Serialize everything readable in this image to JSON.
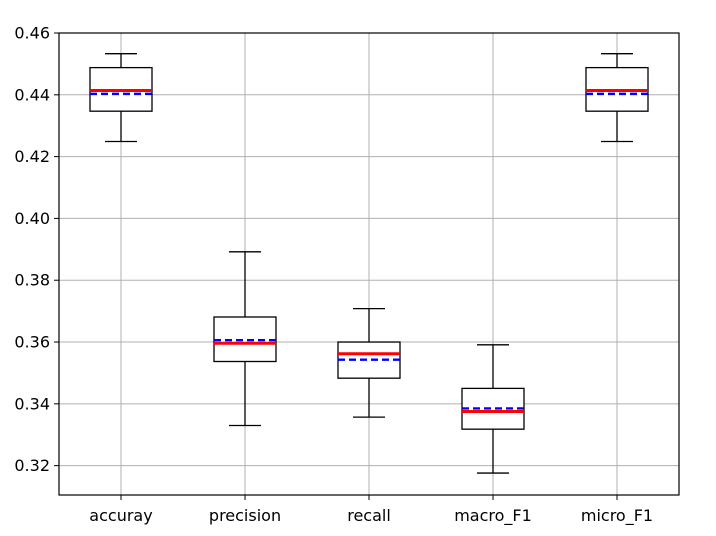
{
  "chart_data": {
    "type": "box",
    "title": "",
    "xlabel": "",
    "ylabel": "",
    "categories": [
      "accuray",
      "precision",
      "recall",
      "macro_F1",
      "micro_F1"
    ],
    "ylim": [
      0.3105,
      0.46
    ],
    "yticks": [
      0.32,
      0.34,
      0.36,
      0.38,
      0.4,
      0.42,
      0.44,
      0.46
    ],
    "ytick_labels": [
      "0.32",
      "0.34",
      "0.36",
      "0.38",
      "0.40",
      "0.42",
      "0.44",
      "0.46"
    ],
    "grid": true,
    "median_color": "#ff0000",
    "mean_color": "#0000ff",
    "boxes": [
      {
        "category": "accuray",
        "whisker_low": 0.4249,
        "q1": 0.4347,
        "median": 0.4414,
        "mean": 0.4403,
        "q3": 0.4488,
        "whisker_high": 0.4533
      },
      {
        "category": "precision",
        "whisker_low": 0.333,
        "q1": 0.3537,
        "median": 0.3596,
        "mean": 0.3606,
        "q3": 0.3681,
        "whisker_high": 0.3892
      },
      {
        "category": "recall",
        "whisker_low": 0.3357,
        "q1": 0.3483,
        "median": 0.3562,
        "mean": 0.3543,
        "q3": 0.36,
        "whisker_high": 0.3708
      },
      {
        "category": "macro_F1",
        "whisker_low": 0.3176,
        "q1": 0.3318,
        "median": 0.3375,
        "mean": 0.3385,
        "q3": 0.345,
        "whisker_high": 0.3591
      },
      {
        "category": "micro_F1",
        "whisker_low": 0.4249,
        "q1": 0.4347,
        "median": 0.4414,
        "mean": 0.4403,
        "q3": 0.4488,
        "whisker_high": 0.4533
      }
    ]
  }
}
